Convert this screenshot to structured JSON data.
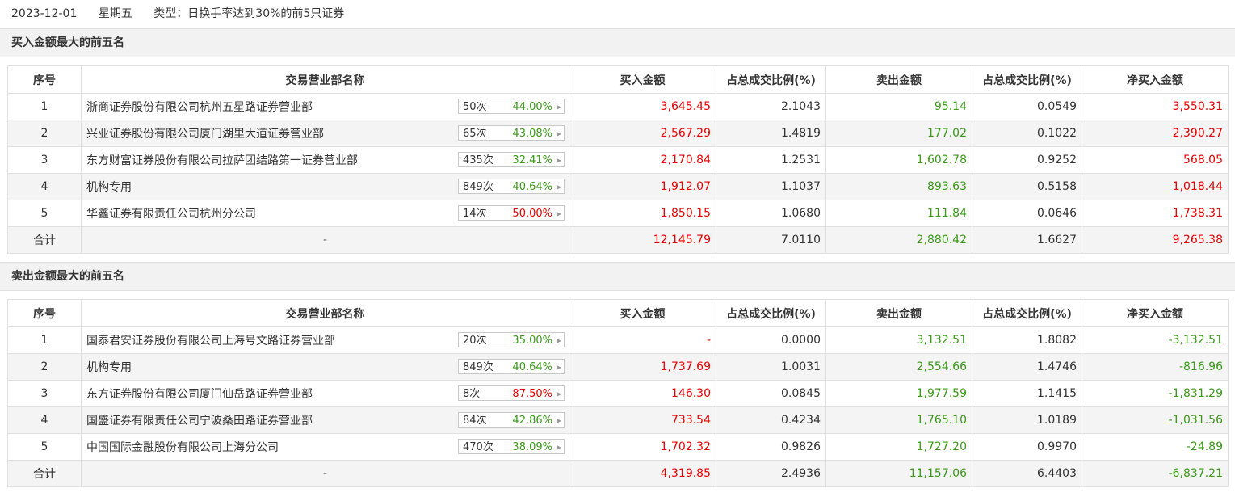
{
  "header": {
    "date": "2023-12-01",
    "weekday": "星期五",
    "type_text": "类型：日换手率达到30%的前5只证券"
  },
  "columns": [
    "序号",
    "交易营业部名称",
    "买入金额",
    "占总成交比例(%)",
    "卖出金额",
    "占总成交比例(%)",
    "净买入金额"
  ],
  "sections": [
    {
      "title": "买入金额最大的前五名",
      "rows": [
        {
          "idx": "1",
          "name": "浙商证券股份有限公司杭州五星路证券营业部",
          "count": "50次",
          "pct": "44.00%",
          "pct_color": "green",
          "buy": "3,645.45",
          "buy_ratio": "2.1043",
          "sell": "95.14",
          "sell_ratio": "0.0549",
          "net": "3,550.31",
          "net_color": "red"
        },
        {
          "idx": "2",
          "name": "兴业证券股份有限公司厦门湖里大道证券营业部",
          "count": "65次",
          "pct": "43.08%",
          "pct_color": "green",
          "buy": "2,567.29",
          "buy_ratio": "1.4819",
          "sell": "177.02",
          "sell_ratio": "0.1022",
          "net": "2,390.27",
          "net_color": "red"
        },
        {
          "idx": "3",
          "name": "东方财富证券股份有限公司拉萨团结路第一证券营业部",
          "count": "435次",
          "pct": "32.41%",
          "pct_color": "green",
          "buy": "2,170.84",
          "buy_ratio": "1.2531",
          "sell": "1,602.78",
          "sell_ratio": "0.9252",
          "net": "568.05",
          "net_color": "red"
        },
        {
          "idx": "4",
          "name": "机构专用",
          "count": "849次",
          "pct": "40.64%",
          "pct_color": "green",
          "buy": "1,912.07",
          "buy_ratio": "1.1037",
          "sell": "893.63",
          "sell_ratio": "0.5158",
          "net": "1,018.44",
          "net_color": "red"
        },
        {
          "idx": "5",
          "name": "华鑫证券有限责任公司杭州分公司",
          "count": "14次",
          "pct": "50.00%",
          "pct_color": "red",
          "buy": "1,850.15",
          "buy_ratio": "1.0680",
          "sell": "111.84",
          "sell_ratio": "0.0646",
          "net": "1,738.31",
          "net_color": "red"
        }
      ],
      "total": {
        "label": "合计",
        "name": "-",
        "buy": "12,145.79",
        "buy_ratio": "7.0110",
        "sell": "2,880.42",
        "sell_ratio": "1.6627",
        "net": "9,265.38",
        "net_color": "red"
      }
    },
    {
      "title": "卖出金额最大的前五名",
      "rows": [
        {
          "idx": "1",
          "name": "国泰君安证券股份有限公司上海号文路证券营业部",
          "count": "20次",
          "pct": "35.00%",
          "pct_color": "green",
          "buy": "-",
          "buy_ratio": "0.0000",
          "sell": "3,132.51",
          "sell_ratio": "1.8082",
          "net": "-3,132.51",
          "net_color": "green"
        },
        {
          "idx": "2",
          "name": "机构专用",
          "count": "849次",
          "pct": "40.64%",
          "pct_color": "green",
          "buy": "1,737.69",
          "buy_ratio": "1.0031",
          "sell": "2,554.66",
          "sell_ratio": "1.4746",
          "net": "-816.96",
          "net_color": "green"
        },
        {
          "idx": "3",
          "name": "东方证券股份有限公司厦门仙岳路证券营业部",
          "count": "8次",
          "pct": "87.50%",
          "pct_color": "red",
          "buy": "146.30",
          "buy_ratio": "0.0845",
          "sell": "1,977.59",
          "sell_ratio": "1.1415",
          "net": "-1,831.29",
          "net_color": "green"
        },
        {
          "idx": "4",
          "name": "国盛证券有限责任公司宁波桑田路证券营业部",
          "count": "84次",
          "pct": "42.86%",
          "pct_color": "green",
          "buy": "733.54",
          "buy_ratio": "0.4234",
          "sell": "1,765.10",
          "sell_ratio": "1.0189",
          "net": "-1,031.56",
          "net_color": "green"
        },
        {
          "idx": "5",
          "name": "中国国际金融股份有限公司上海分公司",
          "count": "470次",
          "pct": "38.09%",
          "pct_color": "green",
          "buy": "1,702.32",
          "buy_ratio": "0.9826",
          "sell": "1,727.20",
          "sell_ratio": "0.9970",
          "net": "-24.89",
          "net_color": "green"
        }
      ],
      "total": {
        "label": "合计",
        "name": "-",
        "buy": "4,319.85",
        "buy_ratio": "2.4936",
        "sell": "11,157.06",
        "sell_ratio": "6.4403",
        "net": "-6,837.21",
        "net_color": "green"
      }
    }
  ],
  "colors": {
    "red": "#e60000",
    "green": "#3a9a18"
  },
  "icons": {
    "pill_arrow": "caret-right-icon"
  }
}
